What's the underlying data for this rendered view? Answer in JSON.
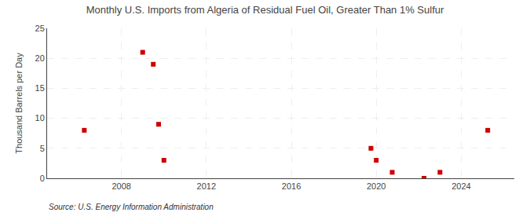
{
  "chart_data": {
    "type": "scatter",
    "title": "Monthly U.S. Imports from Algeria of Residual Fuel Oil, Greater Than 1% Sulfur",
    "ylabel": "Thousand Barrels per Day",
    "annotations": [
      "Source: U.S. Energy Information Administration"
    ],
    "x": [
      2006.25,
      2009.0,
      2009.5,
      2009.75,
      2010.0,
      2019.75,
      2020.0,
      2020.75,
      2022.25,
      2023.0,
      2025.25
    ],
    "values": [
      8,
      21,
      19,
      9,
      3,
      5,
      3,
      1,
      0,
      1,
      8
    ],
    "color": "#cc0000",
    "marker": "square",
    "xlim": [
      2004.5,
      2026.5
    ],
    "xticks": [
      2008,
      2012,
      2016,
      2020,
      2024
    ],
    "ylim": [
      0,
      25
    ],
    "yticks": [
      0,
      5,
      10,
      15,
      20,
      25
    ],
    "grid": true
  }
}
